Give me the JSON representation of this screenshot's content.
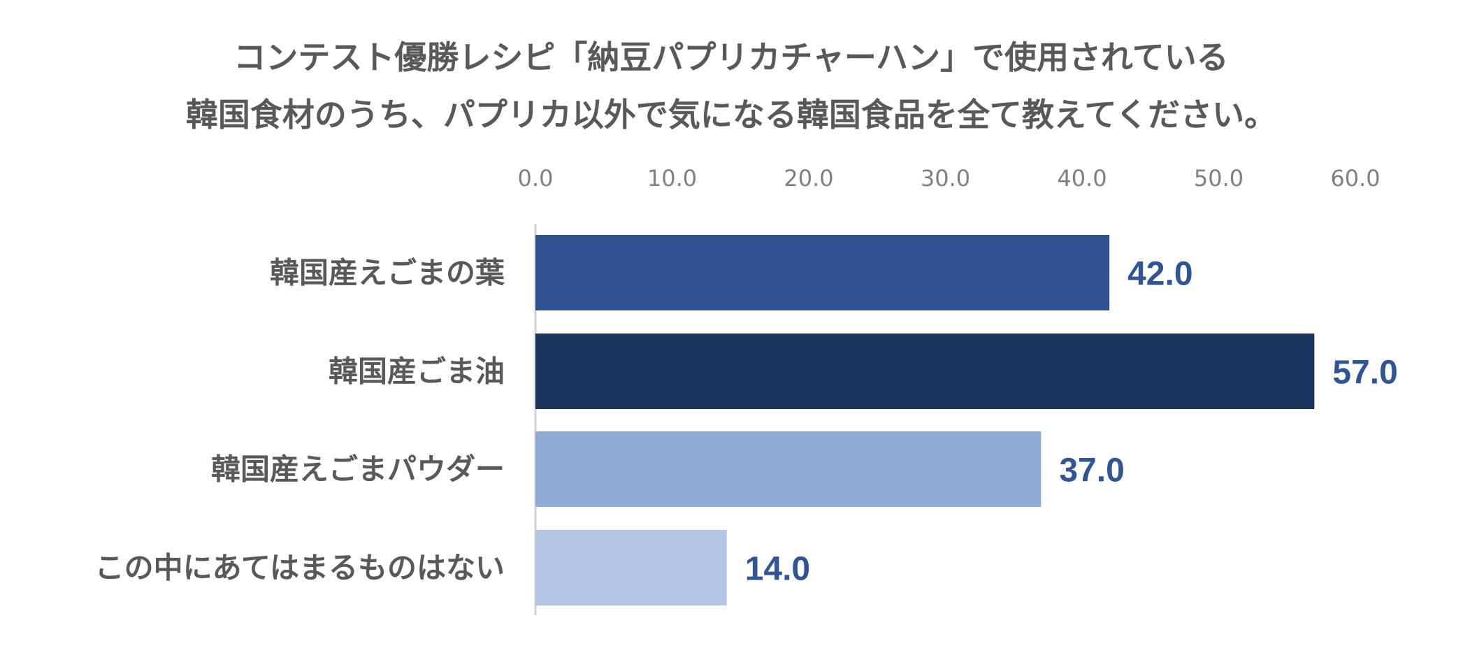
{
  "chart_data": {
    "type": "bar",
    "orientation": "horizontal",
    "title": [
      "コンテスト優勝レシピ「納豆パプリカチャーハン」で使用されている",
      "韓国食材のうち、パプリカ以外で気になる韓国食品を全て教えてください。"
    ],
    "categories": [
      "韓国産えごまの葉",
      "韓国産ごま油",
      "韓国産えごまパウダー",
      "この中にあてはまるものはない"
    ],
    "values": [
      42.0,
      57.0,
      37.0,
      14.0
    ],
    "data_labels": [
      "42.0",
      "57.0",
      "37.0",
      "14.0"
    ],
    "bar_colors": [
      "#2e528f",
      "#1c355e",
      "#8faad6",
      "#b4c5e3"
    ],
    "xlim": [
      0,
      60
    ],
    "ticks": [
      0,
      10,
      20,
      30,
      40,
      50,
      60
    ],
    "tick_labels": [
      "0.0",
      "10.0",
      "20.0",
      "30.0",
      "40.0",
      "50.0",
      "60.0"
    ],
    "axis_position": "top",
    "grid": false,
    "legend": "none",
    "xlabel": "",
    "ylabel": ""
  }
}
